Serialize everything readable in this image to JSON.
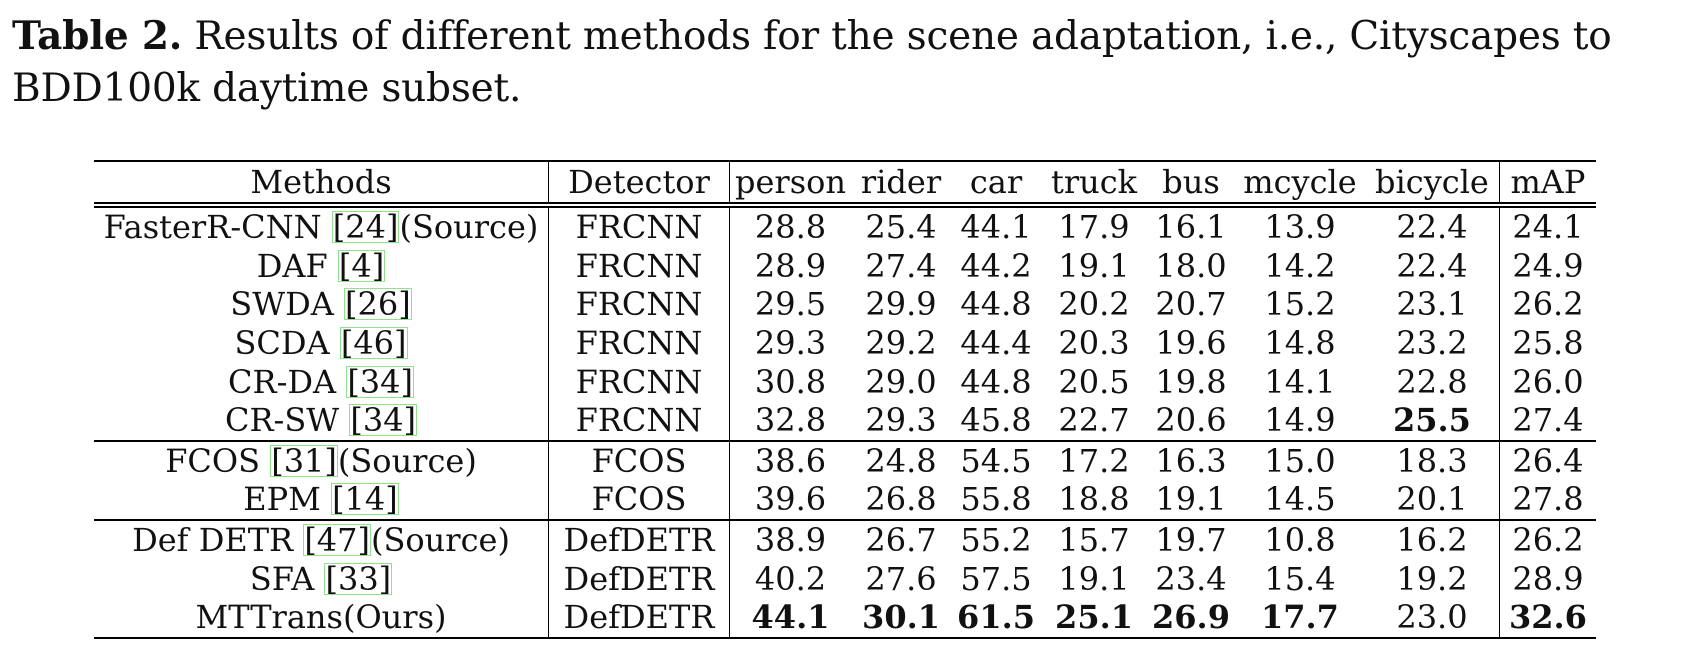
{
  "caption": {
    "label": "Table 2.",
    "text": " Results of different methods for the scene adaptation, i.e., Cityscapes to BDD100k daytime subset."
  },
  "headers": [
    "Methods",
    "Detector",
    "person",
    "rider",
    "car",
    "truck",
    "bus",
    "mcycle",
    "bicycle",
    "mAP"
  ],
  "rows": [
    {
      "method": "FasterR-CNN ",
      "cite": "[24]",
      "suffix": "(Source)",
      "detector": "FRCNN",
      "values": [
        "28.8",
        "25.4",
        "44.1",
        "17.9",
        "16.1",
        "13.9",
        "22.4",
        "24.1"
      ],
      "bold": []
    },
    {
      "method": "DAF ",
      "cite": "[4]",
      "suffix": "",
      "detector": "FRCNN",
      "values": [
        "28.9",
        "27.4",
        "44.2",
        "19.1",
        "18.0",
        "14.2",
        "22.4",
        "24.9"
      ],
      "bold": []
    },
    {
      "method": "SWDA ",
      "cite": "[26]",
      "suffix": "",
      "detector": "FRCNN",
      "values": [
        "29.5",
        "29.9",
        "44.8",
        "20.2",
        "20.7",
        "15.2",
        "23.1",
        "26.2"
      ],
      "bold": []
    },
    {
      "method": "SCDA ",
      "cite": "[46]",
      "suffix": "",
      "detector": "FRCNN",
      "values": [
        "29.3",
        "29.2",
        "44.4",
        "20.3",
        "19.6",
        "14.8",
        "23.2",
        "25.8"
      ],
      "bold": []
    },
    {
      "method": "CR-DA ",
      "cite": "[34]",
      "suffix": "",
      "detector": "FRCNN",
      "values": [
        "30.8",
        "29.0",
        "44.8",
        "20.5",
        "19.8",
        "14.1",
        "22.8",
        "26.0"
      ],
      "bold": []
    },
    {
      "method": "CR-SW ",
      "cite": "[34]",
      "suffix": "",
      "detector": "FRCNN",
      "values": [
        "32.8",
        "29.3",
        "45.8",
        "22.7",
        "20.6",
        "14.9",
        "25.5",
        "27.4"
      ],
      "bold": [
        6
      ]
    },
    {
      "method": "FCOS ",
      "cite": "[31]",
      "suffix": "(Source)",
      "detector": "FCOS",
      "values": [
        "38.6",
        "24.8",
        "54.5",
        "17.2",
        "16.3",
        "15.0",
        "18.3",
        "26.4"
      ],
      "bold": []
    },
    {
      "method": "EPM ",
      "cite": "[14]",
      "suffix": "",
      "detector": "FCOS",
      "values": [
        "39.6",
        "26.8",
        "55.8",
        "18.8",
        "19.1",
        "14.5",
        "20.1",
        "27.8"
      ],
      "bold": []
    },
    {
      "method": "Def DETR ",
      "cite": "[47]",
      "suffix": "(Source)",
      "detector": "DefDETR",
      "values": [
        "38.9",
        "26.7",
        "55.2",
        "15.7",
        "19.7",
        "10.8",
        "16.2",
        "26.2"
      ],
      "bold": []
    },
    {
      "method": "SFA ",
      "cite": "[33]",
      "suffix": "",
      "detector": "DefDETR",
      "values": [
        "40.2",
        "27.6",
        "57.5",
        "19.1",
        "23.4",
        "15.4",
        "19.2",
        "28.9"
      ],
      "bold": []
    },
    {
      "method": "MTTrans(Ours)",
      "cite": "",
      "suffix": "",
      "detector": "DefDETR",
      "values": [
        "44.1",
        "30.1",
        "61.5",
        "25.1",
        "26.9",
        "17.7",
        "23.0",
        "32.6"
      ],
      "bold": [
        0,
        1,
        2,
        3,
        4,
        5,
        7
      ]
    }
  ],
  "group_starts": [
    0,
    6,
    8
  ]
}
